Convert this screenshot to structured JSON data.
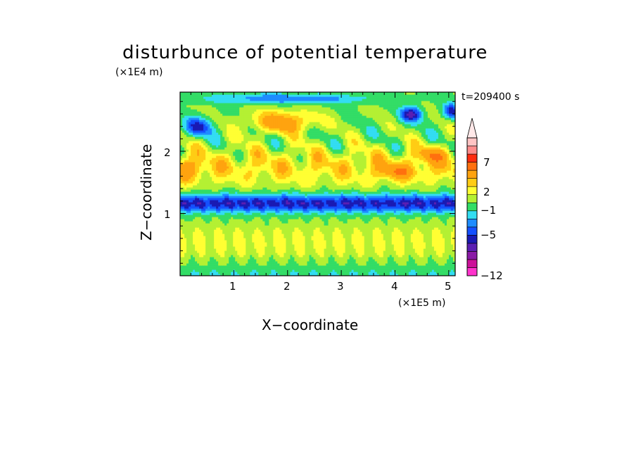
{
  "chart_data": {
    "type": "heatmap",
    "title": "disturbunce of potential temperature",
    "xlabel": "X−coordinate",
    "ylabel": "Z−coordinate",
    "x_unit": "(×1E5 m)",
    "y_unit": "(×1E4 m)",
    "time_label": "t=209400 s",
    "xlim": [
      0,
      5.12
    ],
    "ylim": [
      0,
      2.95
    ],
    "x_ticks": [
      "1",
      "2",
      "3",
      "4",
      "5"
    ],
    "y_ticks": [
      "1",
      "2"
    ],
    "colorbar": {
      "tick_labels": [
        "7",
        "2",
        "−1",
        "−5",
        "−12"
      ],
      "levels": [
        -12,
        -10,
        -8,
        -6,
        -5,
        -4,
        -3,
        -2,
        -1,
        0,
        1,
        2,
        3,
        5,
        7,
        9,
        11
      ],
      "colors_low_to_high": [
        "#ff33cc",
        "#cc1199",
        "#8a1aa6",
        "#5b1fb2",
        "#1a1ab3",
        "#1450ff",
        "#1e8cff",
        "#33ddf2",
        "#33dd66",
        "#b4f033",
        "#ffff33",
        "#ffcc14",
        "#ffa30f",
        "#ff700f",
        "#ff2b0f",
        "#ff8c8c",
        "#ffc4c4"
      ],
      "extend": "max"
    },
    "approx_field": [
      {
        "z_range": [
          0.0,
          0.4
        ],
        "dominant_values": [
          -1,
          0,
          1
        ],
        "description_levels": "near zero"
      },
      {
        "z_range": [
          0.4,
          0.9
        ],
        "dominant_values": [
          0,
          1,
          2
        ]
      },
      {
        "z_range": [
          0.9,
          1.4
        ],
        "dominant_values": [
          -5,
          -4,
          -3,
          -2
        ]
      },
      {
        "z_range": [
          1.4,
          2.0
        ],
        "dominant_values": [
          0,
          1,
          2,
          3
        ]
      },
      {
        "z_range": [
          2.0,
          2.95
        ],
        "dominant_values": [
          -4,
          1,
          3,
          5
        ]
      }
    ],
    "colors": {
      "frame": "#000000",
      "background": "#ffffff"
    }
  }
}
